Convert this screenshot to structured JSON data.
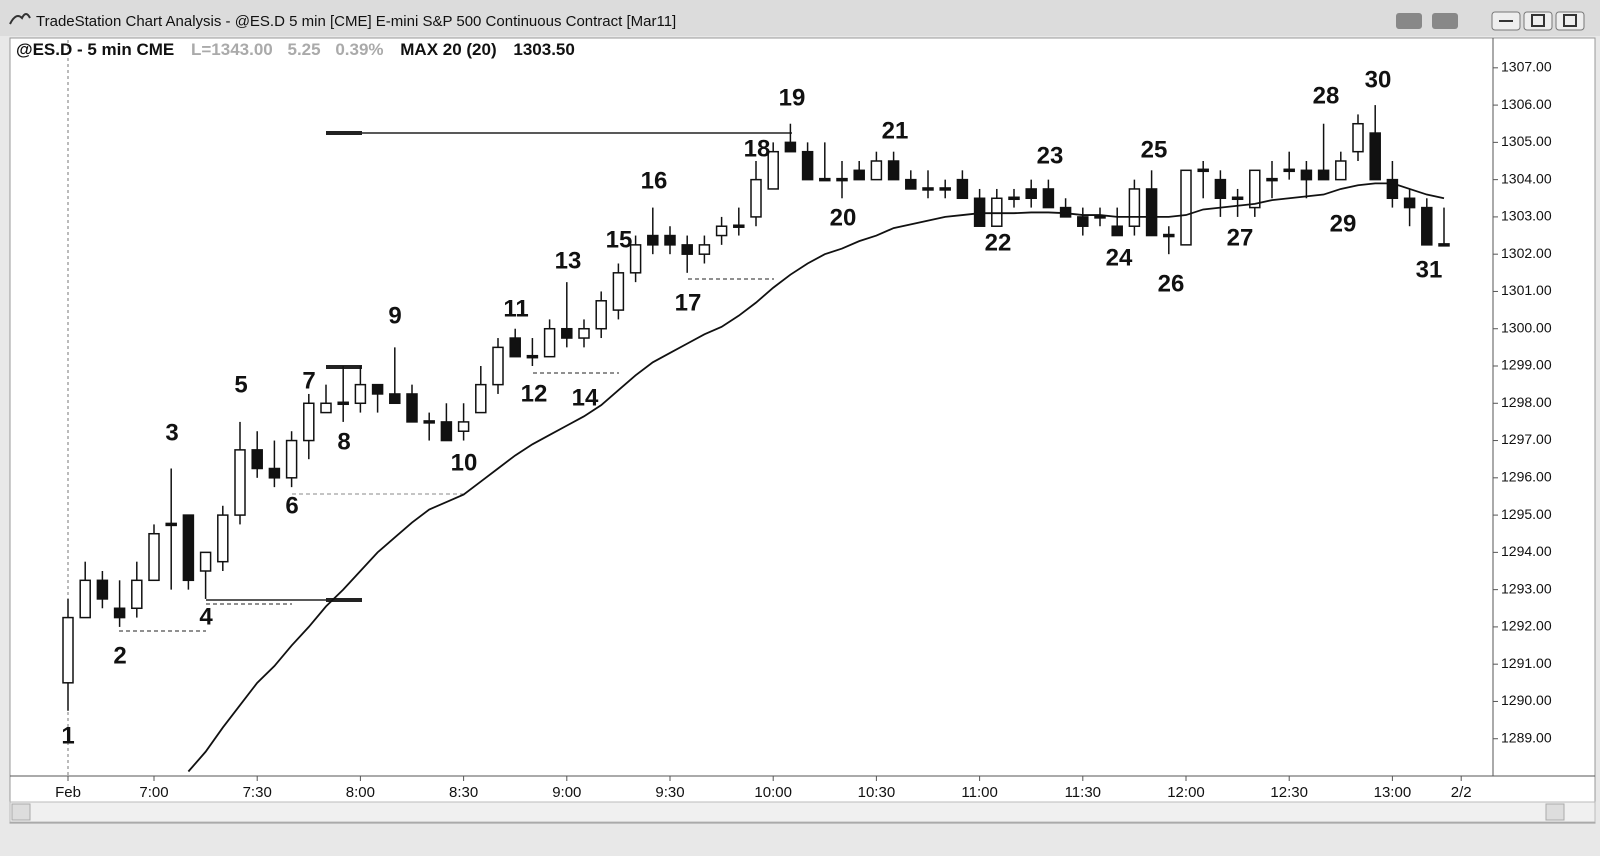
{
  "window_title": "TradeStation Chart Analysis - @ES.D 5 min [CME] E-mini S&P 500 Continuous Contract [Mar11]",
  "chart_data": {
    "type": "candlestick",
    "symbol": "@ES.D - 5 min CME",
    "last": "L=1343.00",
    "change": "5.25",
    "change_pct": "0.39%",
    "indicator_value": "1303.50",
    "categories": [
      "Feb",
      null,
      null,
      null,
      null,
      "7:00",
      null,
      null,
      null,
      null,
      null,
      "7:30",
      null,
      null,
      null,
      null,
      null,
      "8:00",
      null,
      null,
      null,
      null,
      null,
      "8:30",
      null,
      null,
      null,
      null,
      null,
      "9:00",
      null,
      null,
      null,
      null,
      null,
      "9:30",
      null,
      null,
      null,
      null,
      null,
      "10:00",
      null,
      null,
      null,
      null,
      null,
      "10:30",
      null,
      null,
      null,
      null,
      null,
      "11:00",
      null,
      null,
      null,
      null,
      null,
      "11:30",
      null,
      null,
      null,
      null,
      null,
      "12:00",
      null,
      null,
      null,
      null,
      null,
      "12:30",
      null,
      null,
      null,
      null,
      null,
      "13:00",
      null,
      null,
      null,
      "2/2"
    ],
    "open": [
      1290.5,
      1292.25,
      1293.25,
      1292.5,
      1292.5,
      1293.25,
      1294.75,
      1295,
      1293.5,
      1293.75,
      1295,
      1296.75,
      1296.25,
      1296,
      1297,
      1297.75,
      1298,
      1298,
      1298.5,
      1298.25,
      1298.25,
      1297.5,
      1297.5,
      1297.25,
      1297.75,
      1298.5,
      1299.75,
      1299.25,
      1299.25,
      1300,
      1299.75,
      1300,
      1300.5,
      1301.5,
      1302.5,
      1302.5,
      1302.25,
      1302,
      1302.5,
      1302.75,
      1303,
      1303.75,
      1305,
      1304.75,
      1304,
      1304,
      1304.25,
      1304,
      1304.5,
      1304,
      1303.75,
      1303.75,
      1304,
      1303.5,
      1302.75,
      1303.5,
      1303.75,
      1303.75,
      1303.25,
      1303,
      1303,
      1302.75,
      1302.75,
      1303.75,
      1302.5,
      1302.25,
      1304.25,
      1304,
      1303.5,
      1303.25,
      1304,
      1304.25,
      1304.25,
      1304.25,
      1304,
      1304.75,
      1305.25,
      1304,
      1303.5,
      1303.25,
      1302.25,
      null
    ],
    "high": [
      1292.75,
      1293.75,
      1293.5,
      1293.25,
      1293.75,
      1294.75,
      1296.25,
      1295,
      1294,
      1295.25,
      1297.5,
      1297.25,
      1297,
      1297.25,
      1298.25,
      1298.5,
      1299,
      1299,
      1298.5,
      1299.5,
      1298.5,
      1297.75,
      1298,
      1298,
      1299,
      1299.75,
      1300,
      1299.75,
      1300.25,
      1301.25,
      1300.25,
      1301,
      1301.75,
      1302.5,
      1303.25,
      1302.75,
      1302.5,
      1302.5,
      1303,
      1303.25,
      1304.5,
      1305,
      1305.5,
      1305,
      1305,
      1304.5,
      1304.5,
      1304.75,
      1304.75,
      1304.25,
      1304.25,
      1304,
      1304.25,
      1303.75,
      1303.75,
      1303.75,
      1304,
      1304,
      1303.5,
      1303.25,
      1303.25,
      1303.25,
      1304,
      1304.25,
      1302.75,
      1304.25,
      1304.5,
      1304.25,
      1303.75,
      1304.25,
      1304.5,
      1304.75,
      1304.5,
      1305.5,
      1304.75,
      1305.75,
      1306,
      1304.5,
      1303.75,
      1303.5,
      1303.25,
      null
    ],
    "low": [
      1289.75,
      1292.25,
      1292.5,
      1292,
      1292.25,
      1293.25,
      1293,
      1293,
      1292.75,
      1293.5,
      1294.75,
      1296,
      1295.75,
      1295.75,
      1296.5,
      1297.75,
      1297.5,
      1297.75,
      1297.75,
      1298,
      1297.5,
      1297,
      1297,
      1297,
      1297.75,
      1298.25,
      1299.25,
      1299,
      1299.25,
      1299.5,
      1299.5,
      1299.75,
      1300.25,
      1301.25,
      1302,
      1302,
      1301.5,
      1301.75,
      1302.25,
      1302.5,
      1302.75,
      1303.75,
      1304.75,
      1304,
      1304,
      1303.5,
      1304,
      1304,
      1304,
      1303.75,
      1303.5,
      1303.5,
      1303.5,
      1302.75,
      1302.75,
      1303.25,
      1303.25,
      1303.25,
      1303,
      1302.5,
      1302.75,
      1302.5,
      1302.5,
      1302.5,
      1302,
      1302.25,
      1303.5,
      1303,
      1303,
      1303,
      1303.5,
      1304,
      1303.5,
      1304,
      1304,
      1304.5,
      1304,
      1303.25,
      1302.75,
      1302.25,
      1302.25,
      null
    ],
    "close": [
      1292.25,
      1293.25,
      1292.75,
      1292.25,
      1293.25,
      1294.5,
      1294.75,
      1293.25,
      1294,
      1295,
      1296.75,
      1296.25,
      1296,
      1297,
      1298,
      1298,
      1298,
      1298.5,
      1298.25,
      1298,
      1297.5,
      1297.5,
      1297,
      1297.5,
      1298.5,
      1299.5,
      1299.25,
      1299.25,
      1300,
      1299.75,
      1300,
      1300.75,
      1301.5,
      1302.25,
      1302.25,
      1302.25,
      1302,
      1302.25,
      1302.75,
      1302.75,
      1304,
      1304.75,
      1304.75,
      1304,
      1304,
      1304,
      1304,
      1304.5,
      1304,
      1303.75,
      1303.75,
      1303.75,
      1303.5,
      1302.75,
      1303.5,
      1303.5,
      1303.5,
      1303.25,
      1303,
      1302.75,
      1303,
      1302.5,
      1303.75,
      1302.5,
      1302.5,
      1304.25,
      1304.25,
      1303.5,
      1303.5,
      1304.25,
      1304,
      1304.25,
      1304,
      1304,
      1304.5,
      1305.5,
      1304,
      1303.5,
      1303.25,
      1302.25,
      1302.25,
      null
    ],
    "ma": {
      "name": "MAX 20 (20)",
      "color": "#111111",
      "values": [
        null,
        null,
        null,
        null,
        null,
        null,
        null,
        1288.12,
        1288.65,
        1289.3,
        1289.9,
        1290.5,
        1290.95,
        1291.5,
        1292,
        1292.55,
        1293,
        1293.5,
        1294,
        1294.4,
        1294.8,
        1295.15,
        1295.35,
        1295.55,
        1295.9,
        1296.25,
        1296.6,
        1296.9,
        1297.15,
        1297.4,
        1297.65,
        1297.95,
        1298.35,
        1298.75,
        1299.1,
        1299.35,
        1299.6,
        1299.85,
        1300.05,
        1300.35,
        1300.7,
        1301.1,
        1301.45,
        1301.75,
        1302,
        1302.15,
        1302.35,
        1302.5,
        1302.7,
        1302.8,
        1302.9,
        1303,
        1303.05,
        1303.1,
        1303.1,
        1303.1,
        1303.12,
        1303.12,
        1303.1,
        1303.05,
        1303.05,
        1303,
        1303,
        1303,
        1303,
        1303.05,
        1303.2,
        1303.25,
        1303.3,
        1303.35,
        1303.45,
        1303.5,
        1303.55,
        1303.6,
        1303.75,
        1303.85,
        1303.9,
        1303.9,
        1303.75,
        1303.6,
        1303.5,
        null
      ]
    },
    "up_color": "#ffffff",
    "down_color": "#111111",
    "ylim": [
      1288.0,
      1307.8
    ],
    "yticks": [
      {
        "value": 1289,
        "label": "1289.00"
      },
      {
        "value": 1290,
        "label": "1290.00"
      },
      {
        "value": 1291,
        "label": "1291.00"
      },
      {
        "value": 1292,
        "label": "1292.00"
      },
      {
        "value": 1293,
        "label": "1293.00"
      },
      {
        "value": 1294,
        "label": "1294.00"
      },
      {
        "value": 1295,
        "label": "1295.00"
      },
      {
        "value": 1296,
        "label": "1296.00"
      },
      {
        "value": 1297,
        "label": "1297.00"
      },
      {
        "value": 1298,
        "label": "1298.00"
      },
      {
        "value": 1299,
        "label": "1299.00"
      },
      {
        "value": 1300,
        "label": "1300.00"
      },
      {
        "value": 1301,
        "label": "1301.00"
      },
      {
        "value": 1302,
        "label": "1302.00"
      },
      {
        "value": 1303,
        "label": "1303.00"
      },
      {
        "value": 1304,
        "label": "1304.00"
      },
      {
        "value": 1305,
        "label": "1305.00"
      },
      {
        "value": 1306,
        "label": "1306.00"
      },
      {
        "value": 1307,
        "label": "1307.00"
      }
    ],
    "annotations": [
      "1",
      "2",
      "3",
      "4",
      "5",
      "6",
      "7",
      "8",
      "9",
      "10",
      "11",
      "12",
      "13",
      "14",
      "15",
      "16",
      "17",
      "18",
      "19",
      "20",
      "21",
      "22",
      "23",
      "24",
      "25",
      "26",
      "27",
      "28",
      "29",
      "30",
      "31"
    ]
  }
}
